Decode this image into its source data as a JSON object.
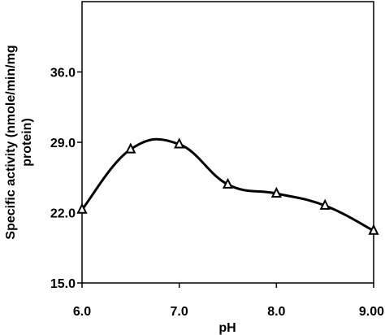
{
  "chart_data": {
    "type": "line",
    "title": "",
    "xlabel": "pH",
    "ylabel_lines": [
      "Specific activity (nmole/min/mg",
      "protein)"
    ],
    "xlim": [
      6.0,
      9.0
    ],
    "ylim": [
      15.0,
      43.0
    ],
    "xticks": [
      6.0,
      7.0,
      8.0,
      9.0
    ],
    "xtick_labels": [
      "6.0",
      "7.0",
      "8.0",
      "9.00"
    ],
    "yticks": [
      15.0,
      22.0,
      29.0,
      36.0
    ],
    "ytick_labels": [
      "15.0",
      "22.0",
      "29.0",
      "36.0"
    ],
    "grid": false,
    "series": [
      {
        "marker": "open-triangle",
        "smooth": true,
        "color": "#000000",
        "x": [
          6.0,
          6.5,
          7.0,
          7.5,
          8.0,
          8.5,
          9.0
        ],
        "y": [
          22.3,
          28.3,
          28.8,
          24.8,
          23.9,
          22.7,
          20.2
        ]
      }
    ]
  }
}
